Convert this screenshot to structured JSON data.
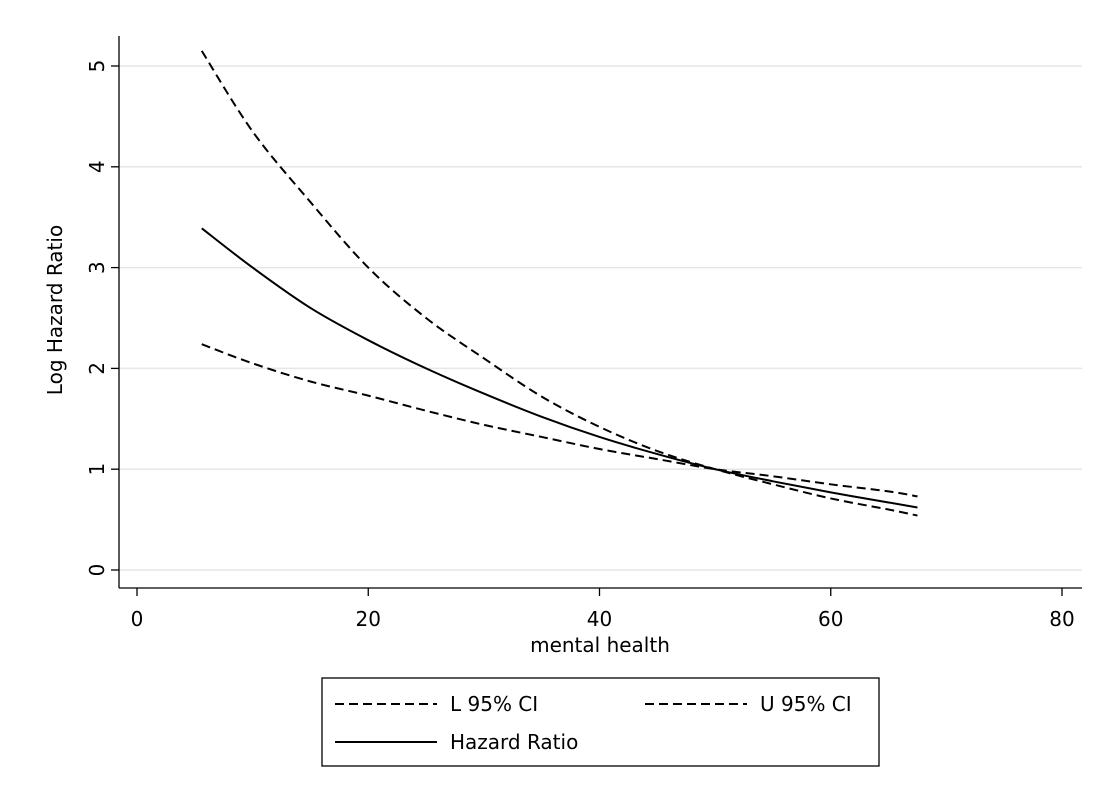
{
  "chart_data": {
    "type": "line",
    "xlabel": "mental health",
    "ylabel": "Log Hazard Ratio",
    "xlim": [
      0,
      80
    ],
    "ylim": [
      0,
      5
    ],
    "x_ticks": [
      "0",
      "20",
      "40",
      "60",
      "80"
    ],
    "y_ticks": [
      "0",
      "1",
      "2",
      "3",
      "4",
      "5"
    ],
    "grid": true,
    "legend_position": "bottom",
    "series": [
      {
        "name": "L 95% CI",
        "style": "dashed",
        "x": [
          5.6,
          10,
          15,
          20,
          25,
          30,
          35,
          40,
          45,
          50,
          55,
          60,
          65,
          67.5
        ],
        "y": [
          2.24,
          2.05,
          1.87,
          1.73,
          1.58,
          1.44,
          1.32,
          1.2,
          1.1,
          1.0,
          0.93,
          0.85,
          0.78,
          0.73
        ]
      },
      {
        "name": "U 95% CI",
        "style": "dashed",
        "x": [
          5.6,
          10,
          15,
          20,
          25,
          30,
          35,
          40,
          45,
          50,
          55,
          60,
          65,
          67.5
        ],
        "y": [
          5.15,
          4.35,
          3.65,
          3.0,
          2.5,
          2.1,
          1.72,
          1.42,
          1.18,
          1.0,
          0.85,
          0.71,
          0.6,
          0.54
        ]
      },
      {
        "name": "Hazard Ratio",
        "style": "solid",
        "x": [
          5.6,
          10,
          15,
          20,
          25,
          30,
          35,
          40,
          45,
          50,
          55,
          60,
          65,
          67.5
        ],
        "y": [
          3.39,
          3.0,
          2.6,
          2.28,
          2.0,
          1.75,
          1.52,
          1.32,
          1.15,
          1.0,
          0.88,
          0.77,
          0.67,
          0.62
        ]
      }
    ]
  }
}
